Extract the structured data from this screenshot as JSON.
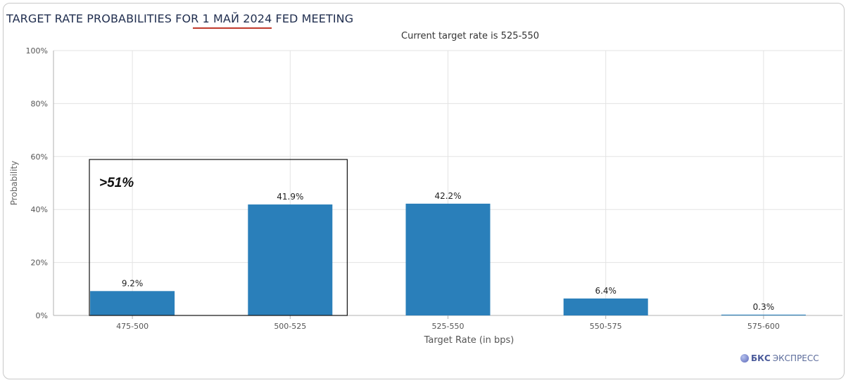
{
  "header": {
    "title": "TARGET RATE PROBABILITIES FOR 1 МАЙ 2024 FED MEETING"
  },
  "chart_data": {
    "type": "bar",
    "subtitle": "Current target rate is 525-550",
    "xlabel": "Target Rate (in bps)",
    "ylabel": "Probability",
    "categories": [
      "475-500",
      "500-525",
      "525-550",
      "550-575",
      "575-600"
    ],
    "values": [
      9.2,
      41.9,
      42.2,
      6.4,
      0.3
    ],
    "data_labels": [
      "9.2%",
      "41.9%",
      "42.2%",
      "6.4%",
      "0.3%"
    ],
    "ylim": [
      0,
      100
    ],
    "yticks": [
      0,
      20,
      40,
      60,
      80,
      100
    ],
    "ytick_labels": [
      "0%",
      "20%",
      "40%",
      "60%",
      "80%",
      "100%"
    ],
    "grid": true,
    "bar_color": "#2a7fba",
    "annotation": {
      "text": ">51%",
      "covers": [
        "475-500",
        "500-525"
      ]
    }
  },
  "logo": {
    "brand": "БКС",
    "name": "ЭКСПРЕСС"
  }
}
